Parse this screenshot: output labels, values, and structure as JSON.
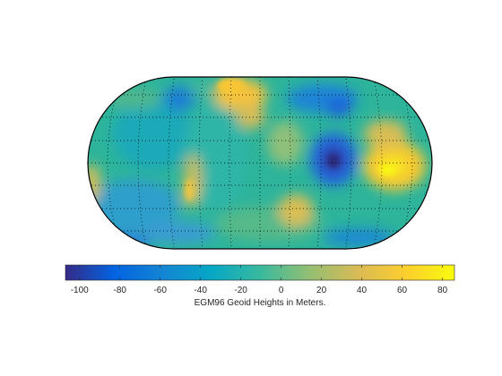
{
  "chart_data": {
    "type": "heatmap",
    "subject": "EGM96 geoid height world map (Eckert IV / pseudocylindrical projection)",
    "colormap": "parula",
    "graticule": {
      "visible": true,
      "style": "dotted"
    },
    "colorbar": {
      "label": "EGM96 Geoid Heights in Meters.",
      "range": [
        -107,
        86
      ],
      "ticks": [
        -100,
        -80,
        -60,
        -40,
        -20,
        0,
        20,
        40,
        60,
        80
      ],
      "tick_labels": [
        "-100",
        "-80",
        "-60",
        "-40",
        "-20",
        "0",
        "20",
        "40",
        "60",
        "80"
      ],
      "placement": "bottom"
    },
    "notable_values": [
      {
        "region": "Indian Ocean geoid low",
        "value": -106
      },
      {
        "region": "New Guinea / Indonesia high",
        "value": 80
      },
      {
        "region": "North Atlantic / Iceland high",
        "value": 65
      }
    ]
  }
}
